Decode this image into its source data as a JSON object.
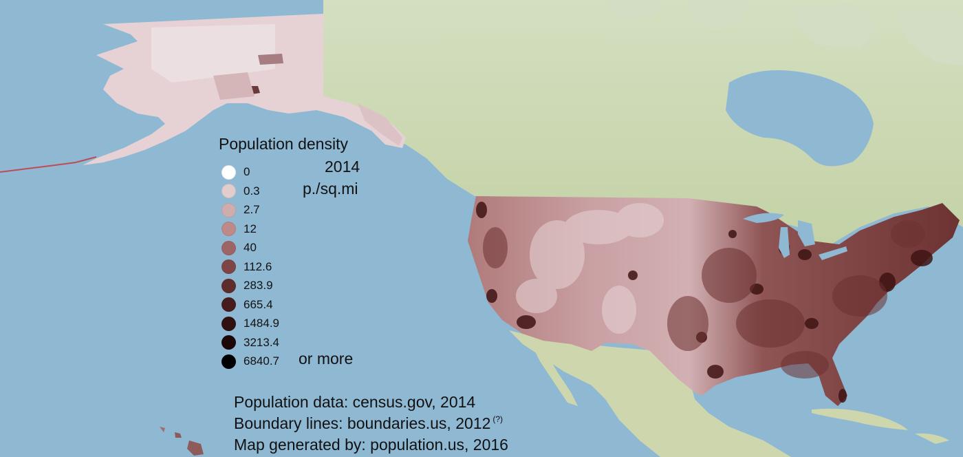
{
  "legend": {
    "title": "Population density",
    "year": "2014",
    "unit": "p./sq.mi",
    "suffix": "or more",
    "items": [
      {
        "label": "0",
        "color": "#ffffff"
      },
      {
        "label": "0.3",
        "color": "#e2cdcd"
      },
      {
        "label": "2.7",
        "color": "#d0adad"
      },
      {
        "label": "12",
        "color": "#bd8989"
      },
      {
        "label": "40",
        "color": "#9d6565"
      },
      {
        "label": "112.6",
        "color": "#7d4545"
      },
      {
        "label": "283.9",
        "color": "#5f2c2c"
      },
      {
        "label": "665.4",
        "color": "#471c1c"
      },
      {
        "label": "1484.9",
        "color": "#311010"
      },
      {
        "label": "3213.4",
        "color": "#1d0808"
      },
      {
        "label": "6840.7",
        "color": "#000000"
      }
    ]
  },
  "credits": {
    "population": "Population data: census.gov, 2014",
    "boundaries": "Boundary lines: boundaries.us, 2012",
    "boundaries_note": "(?)",
    "generated": "Map generated by: population.us, 2016"
  },
  "colors": {
    "ocean": "#8fb8d3",
    "land": "#c9d8b0",
    "alaska": "#e6d2d4",
    "conus_base": "#b88585"
  }
}
